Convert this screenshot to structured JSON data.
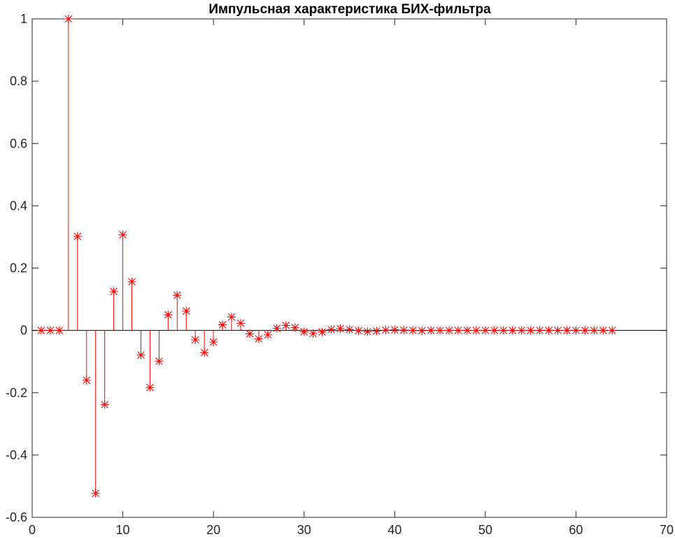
{
  "chart_data": {
    "type": "stem",
    "title": "Импульсная характеристика БИХ-фильтра",
    "xlabel": "",
    "ylabel": "",
    "xlim": [
      0,
      70
    ],
    "ylim": [
      -0.6,
      1
    ],
    "xticks": [
      "0",
      "10",
      "20",
      "30",
      "40",
      "50",
      "60",
      "70"
    ],
    "yticks": [
      "-0.6",
      "-0.4",
      "-0.2",
      "0",
      "0.2",
      "0.4",
      "0.6",
      "0.8",
      "1"
    ],
    "marker": "asterisk",
    "baseline": 0,
    "grid": false,
    "color": "#ff0000",
    "series": [
      {
        "x": [
          1,
          2,
          3,
          4,
          5,
          6,
          7,
          8,
          9,
          10,
          11,
          12,
          13,
          14,
          15,
          16,
          17,
          18,
          19,
          20,
          21,
          22,
          23,
          24,
          25,
          26,
          27,
          28,
          29,
          30,
          31,
          32,
          33,
          34,
          35,
          36,
          37,
          38,
          39,
          40,
          41,
          42,
          43,
          44,
          45,
          46,
          47,
          48,
          49,
          50,
          51,
          52,
          53,
          54,
          55,
          56,
          57,
          58,
          59,
          60,
          61,
          62,
          63,
          64
        ],
        "values": [
          0,
          0,
          0,
          1,
          0.302,
          -0.16,
          -0.523,
          -0.238,
          0.125,
          0.307,
          0.156,
          -0.079,
          -0.183,
          -0.099,
          0.05,
          0.113,
          0.062,
          -0.03,
          -0.071,
          -0.037,
          0.018,
          0.043,
          0.023,
          -0.011,
          -0.027,
          -0.014,
          0.007,
          0.016,
          0.009,
          -0.004,
          -0.01,
          -0.005,
          0.003,
          0.006,
          0.003,
          -0.001,
          -0.004,
          -0.002,
          0.001,
          0.002,
          0.001,
          0,
          -0.001,
          0,
          0,
          0,
          0,
          0,
          0,
          0,
          0,
          0,
          0,
          0,
          0,
          0,
          0,
          0,
          0,
          0,
          0,
          0,
          0,
          0
        ]
      }
    ]
  }
}
